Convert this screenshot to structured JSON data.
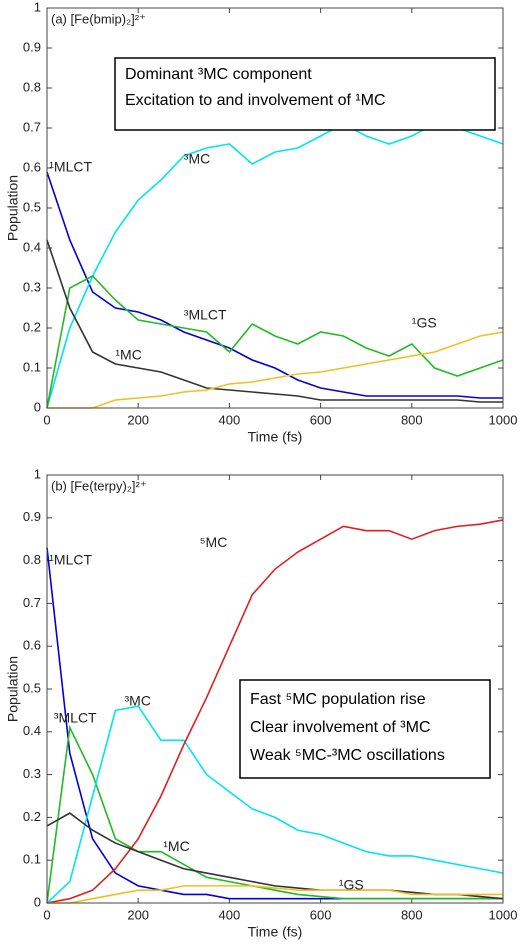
{
  "chart_data": [
    {
      "type": "line",
      "title": "(a) [Fe(bmip)₂]²⁺",
      "x_label": "Time (fs)",
      "y_label": "Population",
      "annotations": [
        "Dominant ³MC component",
        "Excitation to and involvement of ¹MC"
      ],
      "xlim": [
        0,
        1000
      ],
      "xticks": [
        0,
        200,
        400,
        600,
        800,
        1000
      ],
      "ylim": [
        0,
        1
      ],
      "yticks": [
        0,
        0.1,
        0.2,
        0.3,
        0.4,
        0.5,
        0.6,
        0.7,
        0.8,
        0.9,
        1
      ],
      "x": [
        0,
        50,
        100,
        150,
        200,
        250,
        300,
        350,
        400,
        450,
        500,
        550,
        600,
        650,
        700,
        750,
        800,
        850,
        900,
        950,
        1000
      ],
      "series": [
        {
          "name": "¹MLCT",
          "color": "#0000dd",
          "values": [
            0.59,
            0.42,
            0.29,
            0.25,
            0.24,
            0.22,
            0.19,
            0.17,
            0.15,
            0.12,
            0.1,
            0.07,
            0.05,
            0.04,
            0.03,
            0.03,
            0.03,
            0.03,
            0.03,
            0.025,
            0.025
          ]
        },
        {
          "name": "³MC",
          "color": "#00e5ee",
          "values": [
            0,
            0.2,
            0.33,
            0.44,
            0.52,
            0.57,
            0.63,
            0.65,
            0.66,
            0.61,
            0.64,
            0.65,
            0.68,
            0.71,
            0.68,
            0.66,
            0.68,
            0.71,
            0.7,
            0.68,
            0.66
          ]
        },
        {
          "name": "³MLCT",
          "color": "#22bb22",
          "values": [
            0,
            0.3,
            0.33,
            0.27,
            0.22,
            0.21,
            0.2,
            0.19,
            0.14,
            0.21,
            0.18,
            0.16,
            0.19,
            0.18,
            0.15,
            0.13,
            0.16,
            0.1,
            0.08,
            0.1,
            0.12
          ]
        },
        {
          "name": "¹MC",
          "color": "#333333",
          "values": [
            0.42,
            0.25,
            0.14,
            0.11,
            0.1,
            0.09,
            0.07,
            0.05,
            0.045,
            0.04,
            0.035,
            0.03,
            0.02,
            0.02,
            0.02,
            0.02,
            0.02,
            0.02,
            0.02,
            0.015,
            0.015
          ]
        },
        {
          "name": "¹GS",
          "color": "#f0c020",
          "values": [
            0,
            0,
            0,
            0.02,
            0.025,
            0.03,
            0.04,
            0.045,
            0.06,
            0.065,
            0.075,
            0.085,
            0.09,
            0.1,
            0.11,
            0.12,
            0.13,
            0.14,
            0.16,
            0.18,
            0.19
          ]
        }
      ]
    },
    {
      "type": "line",
      "title": "(b) [Fe(terpy)₂]²⁺",
      "x_label": "Time (fs)",
      "y_label": "Population",
      "annotations": [
        "Fast ⁵MC population rise",
        "Clear involvement of ³MC",
        "Weak ⁵MC-³MC oscillations"
      ],
      "xlim": [
        0,
        1000
      ],
      "xticks": [
        0,
        200,
        400,
        600,
        800,
        1000
      ],
      "ylim": [
        0,
        1
      ],
      "yticks": [
        0,
        0.1,
        0.2,
        0.3,
        0.4,
        0.5,
        0.6,
        0.7,
        0.8,
        0.9,
        1
      ],
      "x": [
        0,
        50,
        100,
        150,
        200,
        250,
        300,
        350,
        400,
        450,
        500,
        550,
        600,
        650,
        700,
        750,
        800,
        850,
        900,
        950,
        1000
      ],
      "series": [
        {
          "name": "¹MLCT",
          "color": "#0000dd",
          "values": [
            0.83,
            0.35,
            0.15,
            0.07,
            0.04,
            0.03,
            0.02,
            0.02,
            0.01,
            0.01,
            0.01,
            0.01,
            0.01,
            0.01,
            0.01,
            0.01,
            0.01,
            0.01,
            0.01,
            0.01,
            0.01
          ]
        },
        {
          "name": "³MLCT",
          "color": "#22bb22",
          "values": [
            0,
            0.41,
            0.3,
            0.15,
            0.12,
            0.12,
            0.09,
            0.06,
            0.05,
            0.04,
            0.03,
            0.02,
            0.015,
            0.01,
            0.01,
            0.01,
            0.01,
            0.01,
            0.01,
            0.01,
            0.01
          ]
        },
        {
          "name": "³MC",
          "color": "#00e5ee",
          "values": [
            0,
            0.05,
            0.25,
            0.45,
            0.46,
            0.38,
            0.38,
            0.3,
            0.26,
            0.22,
            0.2,
            0.17,
            0.16,
            0.14,
            0.12,
            0.11,
            0.11,
            0.1,
            0.09,
            0.08,
            0.07
          ]
        },
        {
          "name": "⁵MC",
          "color": "#e02020",
          "values": [
            0,
            0.01,
            0.03,
            0.08,
            0.15,
            0.25,
            0.37,
            0.48,
            0.6,
            0.72,
            0.78,
            0.82,
            0.85,
            0.88,
            0.87,
            0.87,
            0.85,
            0.87,
            0.88,
            0.885,
            0.895
          ]
        },
        {
          "name": "¹MC",
          "color": "#333333",
          "values": [
            0.18,
            0.21,
            0.17,
            0.14,
            0.12,
            0.1,
            0.08,
            0.07,
            0.06,
            0.05,
            0.04,
            0.035,
            0.03,
            0.03,
            0.03,
            0.03,
            0.025,
            0.02,
            0.02,
            0.015,
            0.01
          ]
        },
        {
          "name": "¹GS",
          "color": "#f0c020",
          "values": [
            0,
            0,
            0.01,
            0.02,
            0.03,
            0.03,
            0.04,
            0.04,
            0.04,
            0.04,
            0.035,
            0.03,
            0.03,
            0.03,
            0.03,
            0.03,
            0.02,
            0.02,
            0.02,
            0.02,
            0.02
          ]
        }
      ]
    }
  ]
}
